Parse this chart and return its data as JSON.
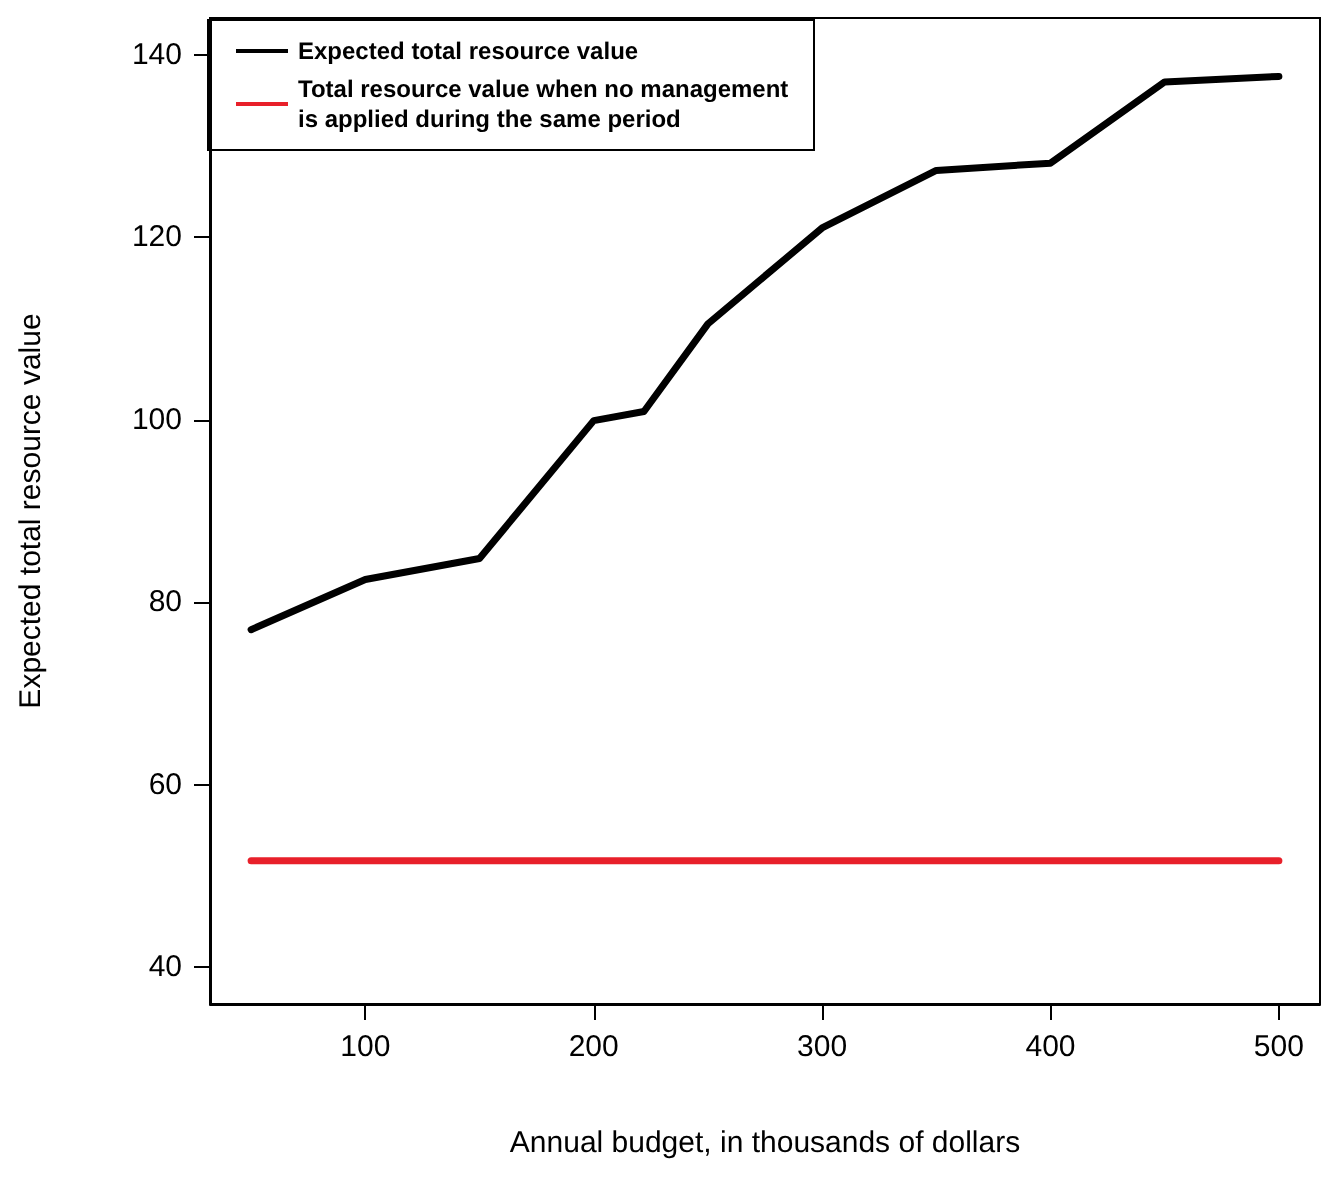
{
  "chart_data": {
    "type": "line",
    "xlabel": "Annual budget, in thousands of dollars",
    "ylabel": "Expected total resource value",
    "x": [
      50,
      100,
      150,
      200,
      222,
      250,
      300,
      350,
      400,
      450,
      500
    ],
    "series": [
      {
        "name": "Expected total resource value",
        "color": "#000000",
        "values": [
          77.0,
          82.5,
          84.8,
          99.9,
          100.9,
          110.5,
          121.0,
          127.3,
          128.1,
          137.0,
          137.6
        ]
      },
      {
        "name": "Total resource value when no management is applied during the same period",
        "color": "#e8202a",
        "values": [
          51.7,
          51.7,
          51.7,
          51.7,
          51.7,
          51.7,
          51.7,
          51.7,
          51.7,
          51.7,
          51.7
        ]
      }
    ],
    "xlim": [
      32,
      518
    ],
    "xticks": [
      100,
      200,
      300,
      400,
      500
    ],
    "ylim": [
      36,
      144
    ],
    "yticks": [
      40,
      60,
      80,
      100,
      120,
      140
    ],
    "legend": "top left",
    "grid": false,
    "marker": "none",
    "line_style": "solid"
  }
}
